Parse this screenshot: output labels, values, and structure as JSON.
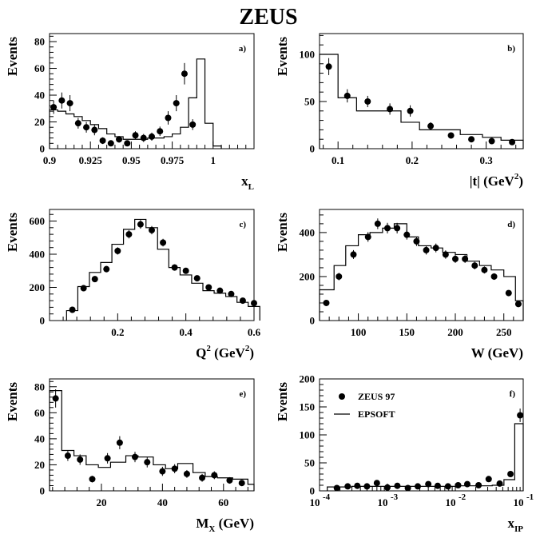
{
  "title": "ZEUS",
  "chart_data": [
    {
      "type": "scatter",
      "panel": "a)",
      "xlabel": "x",
      "xlabel_sub": "L",
      "ylabel": "Events",
      "xlim": [
        0.9,
        1.025
      ],
      "ylim": [
        0,
        86
      ],
      "xticks": [
        0.9,
        0.925,
        0.95,
        0.975,
        1
      ],
      "xtick_labels": [
        "0.9",
        "0.925",
        "0.95",
        "0.975",
        "1"
      ],
      "yticks": [
        0,
        20,
        40,
        60,
        80
      ],
      "ytick_labels": [
        "0",
        "20",
        "40",
        "60",
        "80"
      ],
      "series": [
        {
          "kind": "points",
          "x": [
            0.9025,
            0.9075,
            0.9125,
            0.9175,
            0.9225,
            0.9275,
            0.9325,
            0.9375,
            0.9425,
            0.9475,
            0.9525,
            0.9575,
            0.9625,
            0.9675,
            0.9725,
            0.9775,
            0.9825,
            0.9875,
            0.9925,
            0.9975,
            1.0025
          ],
          "y": [
            31,
            36,
            34,
            19,
            16,
            14,
            6,
            4,
            7,
            4,
            10,
            8,
            9,
            13,
            23,
            34,
            56,
            18,
            0,
            0,
            0
          ],
          "err": [
            5,
            6,
            6,
            4,
            4,
            4,
            2.5,
            2,
            2.5,
            2,
            3,
            3,
            3,
            3.5,
            5,
            6,
            8,
            4,
            0,
            0,
            0
          ]
        },
        {
          "kind": "step",
          "edges": [
            0.9,
            0.905,
            0.91,
            0.915,
            0.92,
            0.925,
            0.93,
            0.935,
            0.94,
            0.945,
            0.95,
            0.955,
            0.96,
            0.965,
            0.97,
            0.975,
            0.98,
            0.985,
            0.99,
            0.995,
            1.0,
            1.005
          ],
          "values": [
            29,
            28,
            26,
            24,
            21,
            18,
            15,
            11,
            9,
            7,
            7,
            7,
            8,
            8,
            9,
            11,
            16,
            38,
            67,
            19,
            2
          ]
        }
      ]
    },
    {
      "type": "scatter",
      "panel": "b)",
      "xlabel": "|t| (GeV",
      "xlabel_sup": "2",
      "xlabel_tail": ")",
      "ylabel": "Events",
      "xlim": [
        0.075,
        0.35
      ],
      "ylim": [
        0,
        122
      ],
      "xticks": [
        0.1,
        0.2,
        0.3
      ],
      "xtick_labels": [
        "0.1",
        "0.2",
        "0.3"
      ],
      "yticks": [
        0,
        50,
        100
      ],
      "ytick_labels": [
        "0",
        "50",
        "100"
      ],
      "series": [
        {
          "kind": "points",
          "x": [
            0.0875,
            0.1125,
            0.14,
            0.17,
            0.1975,
            0.225,
            0.2525,
            0.28,
            0.3075,
            0.335
          ],
          "y": [
            87,
            56,
            50,
            42,
            40,
            24,
            14,
            10,
            8,
            7
          ],
          "err": [
            9,
            7,
            6,
            6,
            6,
            4,
            3,
            2.5,
            2.5,
            2.5
          ]
        },
        {
          "kind": "step",
          "edges": [
            0.075,
            0.1,
            0.125,
            0.155,
            0.185,
            0.21,
            0.24,
            0.265,
            0.295,
            0.32,
            0.35
          ],
          "values": [
            100,
            54,
            40,
            40,
            28,
            20,
            20,
            15,
            12,
            9
          ]
        }
      ]
    },
    {
      "type": "scatter",
      "panel": "c)",
      "xlabel": "Q",
      "xlabel_sup": "2",
      "xlabel_tail": " (GeV",
      "xlabel_sup2": "2",
      "xlabel_tail2": ")",
      "ylabel": "Events",
      "xlim": [
        0.0,
        0.6
      ],
      "ylim": [
        0,
        670
      ],
      "xticks": [
        0.2,
        0.4,
        0.6
      ],
      "xtick_labels": [
        "0.2",
        "0.4",
        "0.6"
      ],
      "yticks": [
        0,
        200,
        400,
        600
      ],
      "ytick_labels": [
        "0",
        "200",
        "400",
        "600"
      ],
      "series": [
        {
          "kind": "points",
          "x": [
            0.067,
            0.1,
            0.133,
            0.167,
            0.2,
            0.233,
            0.267,
            0.3,
            0.333,
            0.367,
            0.4,
            0.433,
            0.467,
            0.5,
            0.533,
            0.567,
            0.6
          ],
          "y": [
            65,
            195,
            250,
            310,
            420,
            520,
            580,
            545,
            470,
            320,
            300,
            255,
            200,
            180,
            160,
            120,
            105
          ],
          "err": [
            10,
            15,
            17,
            19,
            22,
            25,
            26,
            25,
            23,
            19,
            18,
            17,
            15,
            14,
            13,
            12,
            11
          ]
        },
        {
          "kind": "step",
          "edges": [
            0.05,
            0.083,
            0.117,
            0.15,
            0.183,
            0.217,
            0.25,
            0.283,
            0.317,
            0.35,
            0.383,
            0.417,
            0.45,
            0.483,
            0.517,
            0.55,
            0.583,
            0.617
          ],
          "values": [
            60,
            205,
            290,
            350,
            460,
            550,
            610,
            560,
            430,
            320,
            275,
            225,
            180,
            165,
            145,
            110,
            85
          ]
        }
      ]
    },
    {
      "type": "scatter",
      "panel": "d)",
      "xlabel": "W (GeV)",
      "ylabel": "Events",
      "xlim": [
        60,
        270
      ],
      "ylim": [
        0,
        505
      ],
      "xticks": [
        100,
        150,
        200,
        250
      ],
      "xtick_labels": [
        "100",
        "150",
        "200",
        "250"
      ],
      "yticks": [
        0,
        200,
        400
      ],
      "ytick_labels": [
        "0",
        "200",
        "400"
      ],
      "series": [
        {
          "kind": "points",
          "x": [
            67,
            80,
            95,
            110,
            120,
            130,
            140,
            150,
            160,
            170,
            180,
            190,
            200,
            210,
            220,
            230,
            240,
            255,
            265
          ],
          "y": [
            80,
            200,
            300,
            380,
            440,
            420,
            420,
            390,
            360,
            320,
            330,
            300,
            280,
            280,
            250,
            230,
            200,
            125,
            75
          ],
          "err": [
            12,
            17,
            20,
            22,
            24,
            24,
            24,
            22,
            21,
            20,
            20,
            19,
            18,
            18,
            17,
            16,
            15,
            12,
            10
          ]
        },
        {
          "kind": "step",
          "edges": [
            60,
            75,
            87,
            100,
            112,
            125,
            137,
            150,
            162,
            175,
            187,
            200,
            212,
            225,
            237,
            250,
            262,
            270
          ],
          "values": [
            140,
            250,
            340,
            390,
            400,
            420,
            440,
            380,
            340,
            330,
            310,
            300,
            270,
            250,
            230,
            200,
            90
          ]
        }
      ]
    },
    {
      "type": "scatter",
      "panel": "e)",
      "xlabel": "M",
      "xlabel_sub": "X",
      "xlabel_tail": " (GeV)",
      "ylabel": "Events",
      "xlim": [
        3,
        70
      ],
      "ylim": [
        0,
        86
      ],
      "xticks": [
        20,
        40,
        60
      ],
      "xtick_labels": [
        "20",
        "40",
        "60"
      ],
      "yticks": [
        0,
        20,
        40,
        60,
        80
      ],
      "ytick_labels": [
        "0",
        "20",
        "40",
        "60",
        "80"
      ],
      "series": [
        {
          "kind": "points",
          "x": [
            5,
            9,
            13,
            17,
            22,
            26,
            31,
            35,
            40,
            44,
            48,
            53,
            57,
            62,
            66
          ],
          "y": [
            71,
            27,
            24,
            9,
            25,
            37,
            26,
            22,
            15,
            17,
            13,
            10,
            12,
            8,
            6
          ],
          "err": [
            7,
            4,
            4,
            2.5,
            4,
            5,
            4,
            4,
            3.5,
            3.5,
            3,
            3,
            3,
            2.5,
            2
          ]
        },
        {
          "kind": "step",
          "edges": [
            3,
            7,
            11,
            15,
            19,
            23,
            28,
            32,
            37,
            41,
            45,
            50,
            54,
            58,
            63,
            68,
            70
          ],
          "values": [
            77,
            31,
            27,
            20,
            18,
            22,
            27,
            26,
            20,
            17,
            21,
            14,
            11,
            10,
            9,
            5
          ]
        }
      ]
    },
    {
      "type": "scatter",
      "panel": "f)",
      "xlabel": "x",
      "xlabel_sub": "IP",
      "ylabel": "Events",
      "xscale": "log",
      "xlim": [
        0.0001,
        0.1
      ],
      "ylim": [
        0,
        200
      ],
      "xticks": [
        0.0001,
        0.001,
        0.01,
        0.1
      ],
      "xtick_bases": [
        "10",
        "10",
        "10",
        "10"
      ],
      "xtick_exps": [
        "-4",
        "-3",
        "-2",
        "-1"
      ],
      "yticks": [
        0,
        50,
        100,
        150,
        200
      ],
      "ytick_labels": [
        "0",
        "50",
        "100",
        "150",
        "200"
      ],
      "legend": {
        "position": "top-left",
        "entries": [
          {
            "label": "ZEUS 97",
            "style": "marker"
          },
          {
            "label": "EPSOFT",
            "style": "line"
          }
        ]
      },
      "series": [
        {
          "kind": "points",
          "name": "ZEUS 97",
          "x": [
            0.00018,
            0.00026,
            0.00036,
            0.0005,
            0.0007,
            0.001,
            0.0014,
            0.002,
            0.0028,
            0.004,
            0.0055,
            0.0078,
            0.011,
            0.015,
            0.022,
            0.031,
            0.045,
            0.065,
            0.09
          ],
          "y": [
            5,
            8,
            9,
            8,
            14,
            6,
            9,
            5,
            8,
            12,
            9,
            8,
            10,
            12,
            10,
            21,
            13,
            30,
            135
          ],
          "err": [
            2,
            2.5,
            2.5,
            2.5,
            3,
            2,
            2.5,
            2,
            2.5,
            3,
            2.5,
            2.5,
            3,
            3,
            3,
            4,
            3,
            5,
            12
          ]
        },
        {
          "kind": "step",
          "name": "EPSOFT",
          "edges": [
            0.00013,
            0.0002,
            0.0003,
            0.00045,
            0.0007,
            0.001,
            0.0015,
            0.0022,
            0.0033,
            0.005,
            0.0075,
            0.011,
            0.016,
            0.024,
            0.035,
            0.052,
            0.075,
            0.1
          ],
          "values": [
            7,
            7,
            8,
            8,
            8,
            8,
            8,
            8,
            8,
            8,
            8,
            9,
            9,
            9,
            10,
            20,
            120
          ]
        }
      ]
    }
  ]
}
